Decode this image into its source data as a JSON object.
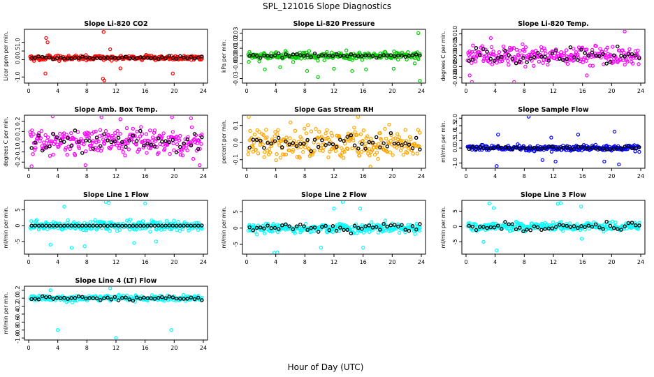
{
  "figure": {
    "title": "SPL_121016  Slope Diagnostics",
    "xlabel": "Hour of Day (UTC)",
    "point_style": "open-circle"
  },
  "chart_data": [
    {
      "type": "scatter",
      "title": "Slope Li-820 CO2",
      "ylabel": "Licor ppm per min.",
      "color": "#ff0000",
      "xlim": [
        0,
        24
      ],
      "ylim": [
        -1.35,
        1.75
      ],
      "yticks": [
        "-1.0",
        "0.0",
        "0.5",
        "1.0"
      ],
      "ytick_values": [
        -1.0,
        0.0,
        0.5,
        1.0
      ],
      "xticks": [
        "0",
        "4",
        "8",
        "12",
        "16",
        "20",
        "24"
      ],
      "xtick_values": [
        0,
        4,
        8,
        12,
        16,
        20,
        24
      ],
      "center": 0.1,
      "spread": 0.12,
      "ref_center": 0.1,
      "ref_spread": 0.08,
      "outliers": [
        [
          2.4,
          1.25
        ],
        [
          2.6,
          1.0
        ],
        [
          2.3,
          -0.8
        ],
        [
          10.3,
          1.6
        ],
        [
          10.2,
          -1.1
        ],
        [
          10.4,
          -1.2
        ],
        [
          12.6,
          -0.5
        ],
        [
          19.8,
          -0.8
        ],
        [
          11.2,
          0.6
        ]
      ]
    },
    {
      "type": "scatter",
      "title": "Slope Li-820 Pressure",
      "ylabel": "kPa per min.",
      "color": "#00cc00",
      "xlim": [
        0,
        24
      ],
      "ylim": [
        -0.036,
        0.035
      ],
      "yticks": [
        "-0.03",
        "-0.01",
        "0.00",
        "0.01",
        "0.02",
        "0.03"
      ],
      "ytick_values": [
        -0.03,
        -0.01,
        0.0,
        0.01,
        0.02,
        0.03
      ],
      "xticks": [
        "0",
        "4",
        "8",
        "12",
        "16",
        "20",
        "24"
      ],
      "xtick_values": [
        0,
        4,
        8,
        12,
        16,
        20,
        24
      ],
      "center": 0.0,
      "spread": 0.004,
      "ref_center": 0.0,
      "ref_spread": 0.002,
      "outliers": [
        [
          0.3,
          -0.008
        ],
        [
          8.3,
          -0.02
        ],
        [
          12.0,
          -0.017
        ],
        [
          14.5,
          -0.02
        ],
        [
          16.4,
          -0.018
        ],
        [
          20.2,
          -0.017
        ],
        [
          23.1,
          -0.01
        ],
        [
          23.6,
          0.03
        ],
        [
          23.8,
          -0.033
        ],
        [
          9.8,
          -0.028
        ],
        [
          4.6,
          -0.015
        ],
        [
          2.5,
          -0.018
        ]
      ]
    },
    {
      "type": "scatter",
      "title": "Slope Li-820 Temp.",
      "ylabel": "degrees C per min.",
      "color": "#ff00ff",
      "xlim": [
        0,
        24
      ],
      "ylim": [
        -0.0125,
        0.012
      ],
      "yticks": [
        "-0.010",
        "-0.005",
        "0.000",
        "0.005",
        "0.010"
      ],
      "ytick_values": [
        -0.01,
        -0.005,
        0.0,
        0.005,
        0.01
      ],
      "xticks": [
        "0",
        "4",
        "8",
        "12",
        "16",
        "20",
        "24"
      ],
      "xtick_values": [
        0,
        4,
        8,
        12,
        16,
        20,
        24
      ],
      "center": 0.0,
      "spread": 0.004,
      "ref_center": 0.0,
      "ref_spread": 0.003,
      "outliers": [
        [
          0.5,
          -0.009
        ],
        [
          0.8,
          -0.012
        ],
        [
          6.6,
          -0.012
        ],
        [
          3.4,
          0.008
        ],
        [
          21.8,
          0.011
        ],
        [
          16.6,
          -0.009
        ]
      ]
    },
    {
      "type": "scatter",
      "title": "Slope Amb. Box Temp.",
      "ylabel": "degrees C per min.",
      "color": "#ff00ff",
      "xlim": [
        0,
        24
      ],
      "ylim": [
        -0.26,
        0.26
      ],
      "yticks": [
        "-0.2",
        "-0.1",
        "0.0",
        "0.1",
        "0.2"
      ],
      "ytick_values": [
        -0.2,
        -0.1,
        0.0,
        0.1,
        0.2
      ],
      "xticks": [
        "0",
        "4",
        "8",
        "12",
        "16",
        "20",
        "24"
      ],
      "xtick_values": [
        0,
        4,
        8,
        12,
        16,
        20,
        24
      ],
      "center": 0.0,
      "spread": 0.1,
      "ref_center": 0.0,
      "ref_spread": 0.08,
      "outliers": [
        [
          0.4,
          -0.24
        ],
        [
          3.3,
          0.25
        ],
        [
          7.8,
          -0.23
        ],
        [
          10.0,
          0.24
        ],
        [
          12.6,
          0.22
        ],
        [
          19.7,
          0.24
        ],
        [
          22.3,
          0.23
        ],
        [
          23.5,
          -0.23
        ]
      ]
    },
    {
      "type": "scatter",
      "title": "Slope Gas Stream RH",
      "ylabel": "percent per min.",
      "color": "#ffa500",
      "xlim": [
        0,
        24
      ],
      "ylim": [
        -0.15,
        0.16
      ],
      "yticks": [
        "-0.1",
        "0.0",
        "0.1"
      ],
      "ytick_values": [
        -0.1,
        0.0,
        0.1
      ],
      "xticks": [
        "0",
        "4",
        "8",
        "12",
        "16",
        "20",
        "24"
      ],
      "xtick_values": [
        0,
        4,
        8,
        12,
        16,
        20,
        24
      ],
      "center": 0.0,
      "spread": 0.075,
      "ref_center": 0.0,
      "ref_spread": 0.04,
      "outliers": [
        [
          0.3,
          0.15
        ],
        [
          15.3,
          0.15
        ],
        [
          17.0,
          -0.14
        ]
      ]
    },
    {
      "type": "scatter",
      "title": "Slope Sample Flow",
      "ylabel": "ml/min per min.",
      "color": "#0000ff",
      "xlim": [
        0,
        24
      ],
      "ylim": [
        -1.35,
        2.2
      ],
      "yticks": [
        "-1.0",
        "0.0",
        "0.5",
        "1.0",
        "1.5",
        "2.0"
      ],
      "ytick_values": [
        -1.0,
        0.0,
        0.5,
        1.0,
        1.5,
        2.0
      ],
      "xticks": [
        "0",
        "4",
        "8",
        "12",
        "16",
        "20",
        "24"
      ],
      "xtick_values": [
        0,
        4,
        8,
        12,
        16,
        20,
        24
      ],
      "center": 0.0,
      "spread": 0.15,
      "ref_center": 0.0,
      "ref_spread": 0.08,
      "outliers": [
        [
          8.6,
          2.1
        ],
        [
          4.2,
          -1.2
        ],
        [
          4.4,
          0.9
        ],
        [
          11.7,
          0.7
        ],
        [
          15.4,
          0.9
        ],
        [
          20.4,
          1.1
        ],
        [
          12.3,
          -0.9
        ],
        [
          10.5,
          -0.8
        ],
        [
          19.0,
          -0.9
        ],
        [
          21.0,
          -1.1
        ]
      ]
    },
    {
      "type": "scatter",
      "title": "Slope Line 1 Flow",
      "ylabel": "ml/min per min.",
      "color": "#00ffff",
      "xlim": [
        0,
        24
      ],
      "ylim": [
        -9,
        8
      ],
      "yticks": [
        "-5",
        "0",
        "5"
      ],
      "ytick_values": [
        -5,
        0,
        5
      ],
      "xticks": [
        "0",
        "4",
        "8",
        "12",
        "16",
        "20",
        "24"
      ],
      "xtick_values": [
        0,
        4,
        8,
        12,
        16,
        20,
        24
      ],
      "center": 0.0,
      "spread": 1.3,
      "ref_center": 0.0,
      "ref_spread": 0.05,
      "outliers": [
        [
          4.9,
          6.0
        ],
        [
          10.6,
          7.5
        ],
        [
          11.0,
          7.2
        ],
        [
          16.0,
          7.0
        ],
        [
          7.7,
          -6.5
        ],
        [
          5.9,
          -7.0
        ],
        [
          3.0,
          -6.0
        ],
        [
          14.5,
          -5.5
        ],
        [
          17.5,
          -5.0
        ]
      ]
    },
    {
      "type": "scatter",
      "title": "Slope Line 2 Flow",
      "ylabel": "ml/min per min.",
      "color": "#00ffff",
      "xlim": [
        0,
        24
      ],
      "ylim": [
        -8,
        8.5
      ],
      "yticks": [
        "-5",
        "0",
        "5"
      ],
      "ytick_values": [
        -5,
        0,
        5
      ],
      "xticks": [
        "0",
        "4",
        "8",
        "12",
        "16",
        "20",
        "24"
      ],
      "xtick_values": [
        0,
        4,
        8,
        12,
        16,
        20,
        24
      ],
      "center": 0.0,
      "spread": 1.3,
      "ref_center": 0.0,
      "ref_spread": 1.2,
      "outliers": [
        [
          3.8,
          -7.6
        ],
        [
          4.2,
          -7.5
        ],
        [
          12.0,
          6.0
        ],
        [
          15.6,
          6.0
        ],
        [
          10.2,
          -6.0
        ],
        [
          16.0,
          -6.0
        ],
        [
          13.2,
          8.0
        ]
      ]
    },
    {
      "type": "scatter",
      "title": "Slope Line 3 Flow",
      "ylabel": "ml/min per min.",
      "color": "#00ffff",
      "xlim": [
        0,
        24
      ],
      "ylim": [
        -9,
        8.5
      ],
      "yticks": [
        "-5",
        "0",
        "5"
      ],
      "ytick_values": [
        -5,
        0,
        5
      ],
      "xticks": [
        "0",
        "4",
        "8",
        "12",
        "16",
        "20",
        "24"
      ],
      "xtick_values": [
        0,
        4,
        8,
        12,
        16,
        20,
        24
      ],
      "center": 0.0,
      "spread": 1.2,
      "ref_center": 0.0,
      "ref_spread": 1.0,
      "outliers": [
        [
          3.2,
          7.5
        ],
        [
          3.8,
          6.0
        ],
        [
          13.0,
          7.6
        ],
        [
          12.6,
          7.4
        ],
        [
          15.8,
          6.5
        ],
        [
          4.2,
          -7.8
        ],
        [
          2.4,
          -5.0
        ],
        [
          15.9,
          -4.0
        ]
      ]
    },
    {
      "type": "scatter",
      "title": "Slope Line 4 (LT) Flow",
      "ylabel": "ml/min per min.",
      "color": "#00ffff",
      "xlim": [
        0,
        24
      ],
      "ylim": [
        -1.05,
        0.3
      ],
      "yticks": [
        "-1.0",
        "-0.8",
        "-0.6",
        "-0.4",
        "-0.2",
        "0.0",
        "0.2"
      ],
      "ytick_values": [
        -1.0,
        -0.8,
        -0.6,
        -0.4,
        -0.2,
        0.0,
        0.2
      ],
      "xticks": [
        "0",
        "4",
        "8",
        "12",
        "16",
        "20",
        "24"
      ],
      "xtick_values": [
        0,
        4,
        8,
        12,
        16,
        20,
        24
      ],
      "center": 0.0,
      "spread": 0.06,
      "ref_center": 0.0,
      "ref_spread": 0.04,
      "outliers": [
        [
          4.0,
          -0.8
        ],
        [
          12.0,
          -1.0
        ],
        [
          19.6,
          -0.8
        ],
        [
          11.2,
          0.25
        ],
        [
          3.0,
          0.2
        ]
      ]
    }
  ]
}
